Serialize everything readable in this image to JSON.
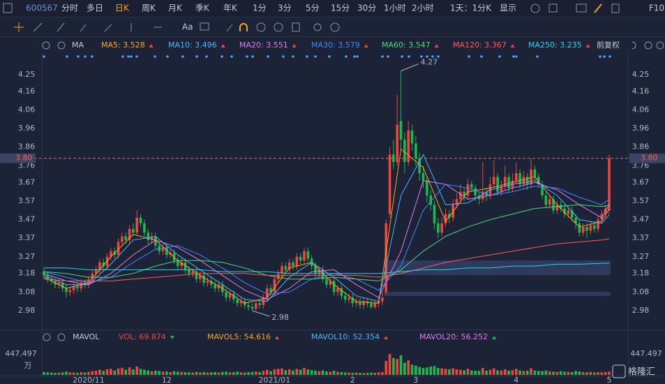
{
  "toolbar": {
    "symbol": "600567",
    "periods": [
      "分时",
      "多日",
      "日K",
      "周K",
      "月K",
      "季K",
      "年K",
      "1分",
      "3分",
      "5分",
      "15分",
      "30分",
      "1小时",
      "2小时"
    ],
    "range": "1天：1分K",
    "display": "显示",
    "f10": "F10",
    "tools_text": "Aa"
  },
  "chart_data": {
    "type": "candlestick",
    "indicator": "MA",
    "adjust": "前复权",
    "ylim": [
      2.886,
      4.37
    ],
    "yticks": [
      2.98,
      3.08,
      3.18,
      3.27,
      3.37,
      3.47,
      3.57,
      3.67,
      3.76,
      3.86,
      3.96,
      4.06,
      4.16,
      4.25
    ],
    "grid": false,
    "up_color": "#f0463e",
    "down_color": "#1fb84d",
    "xticks": [
      {
        "value": 12,
        "label": "2020/11"
      },
      {
        "value": 33,
        "label": "12"
      },
      {
        "value": 62,
        "label": "2021/01"
      },
      {
        "value": 83,
        "label": "2"
      },
      {
        "value": 100,
        "label": "3"
      },
      {
        "value": 127,
        "label": "4"
      },
      {
        "value": 152,
        "label": "5"
      }
    ],
    "last_price": {
      "value": 3.8,
      "label": "3.80"
    },
    "annotations": [
      {
        "label": "4.27",
        "value": 4.27,
        "index": 96
      },
      {
        "label": "2.98",
        "value": 2.98,
        "index": 56
      }
    ],
    "ohlc": [
      [
        3.19,
        3.21,
        3.15,
        3.17
      ],
      [
        3.17,
        3.19,
        3.13,
        3.15
      ],
      [
        3.15,
        3.17,
        3.12,
        3.14
      ],
      [
        3.14,
        3.16,
        3.1,
        3.12
      ],
      [
        3.12,
        3.15,
        3.1,
        3.13
      ],
      [
        3.13,
        3.15,
        3.08,
        3.1
      ],
      [
        3.1,
        3.12,
        3.05,
        3.08
      ],
      [
        3.08,
        3.11,
        3.06,
        3.09
      ],
      [
        3.09,
        3.13,
        3.07,
        3.11
      ],
      [
        3.11,
        3.13,
        3.08,
        3.1
      ],
      [
        3.1,
        3.15,
        3.08,
        3.13
      ],
      [
        3.13,
        3.15,
        3.1,
        3.12
      ],
      [
        3.12,
        3.17,
        3.1,
        3.15
      ],
      [
        3.15,
        3.2,
        3.13,
        3.18
      ],
      [
        3.18,
        3.22,
        3.16,
        3.2
      ],
      [
        3.2,
        3.26,
        3.18,
        3.24
      ],
      [
        3.24,
        3.26,
        3.2,
        3.22
      ],
      [
        3.22,
        3.29,
        3.2,
        3.27
      ],
      [
        3.27,
        3.32,
        3.25,
        3.3
      ],
      [
        3.3,
        3.32,
        3.26,
        3.28
      ],
      [
        3.28,
        3.37,
        3.26,
        3.35
      ],
      [
        3.35,
        3.4,
        3.33,
        3.38
      ],
      [
        3.38,
        3.4,
        3.34,
        3.36
      ],
      [
        3.36,
        3.44,
        3.34,
        3.42
      ],
      [
        3.42,
        3.45,
        3.38,
        3.4
      ],
      [
        3.4,
        3.52,
        3.38,
        3.48
      ],
      [
        3.48,
        3.5,
        3.43,
        3.45
      ],
      [
        3.45,
        3.47,
        3.38,
        3.4
      ],
      [
        3.4,
        3.42,
        3.34,
        3.36
      ],
      [
        3.36,
        3.4,
        3.34,
        3.38
      ],
      [
        3.38,
        3.4,
        3.31,
        3.33
      ],
      [
        3.33,
        3.35,
        3.28,
        3.3
      ],
      [
        3.3,
        3.34,
        3.28,
        3.32
      ],
      [
        3.32,
        3.34,
        3.26,
        3.28
      ],
      [
        3.28,
        3.31,
        3.26,
        3.29
      ],
      [
        3.29,
        3.31,
        3.23,
        3.25
      ],
      [
        3.25,
        3.27,
        3.2,
        3.22
      ],
      [
        3.22,
        3.26,
        3.2,
        3.24
      ],
      [
        3.24,
        3.26,
        3.18,
        3.2
      ],
      [
        3.2,
        3.22,
        3.16,
        3.18
      ],
      [
        3.18,
        3.21,
        3.16,
        3.19
      ],
      [
        3.19,
        3.21,
        3.13,
        3.15
      ],
      [
        3.15,
        3.19,
        3.13,
        3.17
      ],
      [
        3.17,
        3.19,
        3.11,
        3.13
      ],
      [
        3.13,
        3.16,
        3.11,
        3.14
      ],
      [
        3.14,
        3.16,
        3.1,
        3.12
      ],
      [
        3.12,
        3.14,
        3.08,
        3.1
      ],
      [
        3.1,
        3.14,
        3.08,
        3.12
      ],
      [
        3.12,
        3.14,
        3.06,
        3.08
      ],
      [
        3.08,
        3.1,
        3.03,
        3.05
      ],
      [
        3.05,
        3.09,
        3.03,
        3.07
      ],
      [
        3.07,
        3.09,
        3.02,
        3.04
      ],
      [
        3.04,
        3.06,
        3.0,
        3.02
      ],
      [
        3.02,
        3.05,
        3.0,
        3.03
      ],
      [
        3.03,
        3.05,
        2.99,
        3.01
      ],
      [
        3.01,
        3.03,
        2.98,
        3.0
      ],
      [
        3.0,
        3.02,
        2.98,
        2.99
      ],
      [
        2.99,
        3.04,
        2.98,
        3.02
      ],
      [
        3.02,
        3.04,
        2.99,
        3.01
      ],
      [
        3.01,
        3.07,
        2.99,
        3.05
      ],
      [
        3.05,
        3.12,
        3.03,
        3.1
      ],
      [
        3.1,
        3.12,
        3.06,
        3.08
      ],
      [
        3.08,
        3.17,
        3.06,
        3.15
      ],
      [
        3.15,
        3.2,
        3.13,
        3.18
      ],
      [
        3.18,
        3.24,
        3.16,
        3.22
      ],
      [
        3.22,
        3.24,
        3.18,
        3.2
      ],
      [
        3.2,
        3.26,
        3.18,
        3.24
      ],
      [
        3.24,
        3.26,
        3.2,
        3.22
      ],
      [
        3.22,
        3.29,
        3.2,
        3.27
      ],
      [
        3.27,
        3.29,
        3.23,
        3.25
      ],
      [
        3.25,
        3.32,
        3.23,
        3.3
      ],
      [
        3.3,
        3.32,
        3.24,
        3.26
      ],
      [
        3.26,
        3.28,
        3.2,
        3.22
      ],
      [
        3.22,
        3.24,
        3.16,
        3.18
      ],
      [
        3.18,
        3.22,
        3.16,
        3.2
      ],
      [
        3.2,
        3.22,
        3.13,
        3.15
      ],
      [
        3.15,
        3.17,
        3.1,
        3.12
      ],
      [
        3.12,
        3.16,
        3.1,
        3.14
      ],
      [
        3.14,
        3.16,
        3.06,
        3.08
      ],
      [
        3.08,
        3.12,
        3.06,
        3.1
      ],
      [
        3.1,
        3.12,
        3.04,
        3.06
      ],
      [
        3.06,
        3.08,
        3.02,
        3.04
      ],
      [
        3.04,
        3.07,
        3.02,
        3.05
      ],
      [
        3.05,
        3.07,
        3.0,
        3.02
      ],
      [
        3.02,
        3.05,
        3.0,
        3.03
      ],
      [
        3.03,
        3.05,
        2.99,
        3.01
      ],
      [
        3.01,
        3.05,
        2.99,
        3.03
      ],
      [
        3.03,
        3.05,
        3.0,
        3.02
      ],
      [
        3.02,
        3.04,
        2.99,
        3.0
      ],
      [
        3.0,
        3.04,
        2.99,
        3.02
      ],
      [
        3.02,
        3.05,
        3.0,
        3.03
      ],
      [
        3.03,
        3.08,
        3.01,
        3.05
      ],
      [
        3.08,
        3.47,
        3.07,
        3.45
      ],
      [
        3.5,
        3.86,
        3.48,
        3.82
      ],
      [
        3.82,
        3.9,
        3.74,
        3.78
      ],
      [
        3.78,
        4.14,
        3.76,
        3.98
      ],
      [
        4.0,
        4.27,
        3.85,
        3.9
      ],
      [
        3.9,
        3.94,
        3.72,
        3.78
      ],
      [
        3.78,
        4.0,
        3.76,
        3.95
      ],
      [
        3.95,
        3.98,
        3.84,
        3.88
      ],
      [
        3.88,
        3.92,
        3.76,
        3.8
      ],
      [
        3.8,
        3.83,
        3.68,
        3.72
      ],
      [
        3.72,
        3.76,
        3.64,
        3.68
      ],
      [
        3.68,
        3.7,
        3.56,
        3.6
      ],
      [
        3.6,
        3.63,
        3.52,
        3.55
      ],
      [
        3.55,
        3.57,
        3.42,
        3.45
      ],
      [
        3.45,
        3.48,
        3.37,
        3.4
      ],
      [
        3.4,
        3.48,
        3.38,
        3.45
      ],
      [
        3.45,
        3.53,
        3.43,
        3.5
      ],
      [
        3.5,
        3.52,
        3.45,
        3.48
      ],
      [
        3.48,
        3.58,
        3.46,
        3.55
      ],
      [
        3.55,
        3.61,
        3.53,
        3.58
      ],
      [
        3.58,
        3.66,
        3.56,
        3.62
      ],
      [
        3.62,
        3.64,
        3.57,
        3.6
      ],
      [
        3.6,
        3.69,
        3.58,
        3.66
      ],
      [
        3.66,
        3.68,
        3.62,
        3.64
      ],
      [
        3.64,
        3.66,
        3.57,
        3.6
      ],
      [
        3.6,
        3.62,
        3.55,
        3.58
      ],
      [
        3.58,
        3.78,
        3.56,
        3.62
      ],
      [
        3.62,
        3.64,
        3.57,
        3.6
      ],
      [
        3.6,
        3.7,
        3.58,
        3.66
      ],
      [
        3.66,
        3.79,
        3.64,
        3.7
      ],
      [
        3.7,
        3.72,
        3.6,
        3.62
      ],
      [
        3.62,
        3.68,
        3.6,
        3.65
      ],
      [
        3.65,
        3.76,
        3.63,
        3.7
      ],
      [
        3.7,
        3.72,
        3.62,
        3.64
      ],
      [
        3.64,
        3.72,
        3.62,
        3.68
      ],
      [
        3.68,
        3.78,
        3.66,
        3.72
      ],
      [
        3.72,
        3.74,
        3.64,
        3.66
      ],
      [
        3.66,
        3.73,
        3.64,
        3.7
      ],
      [
        3.7,
        3.72,
        3.63,
        3.66
      ],
      [
        3.66,
        3.8,
        3.64,
        3.74
      ],
      [
        3.74,
        3.76,
        3.68,
        3.7
      ],
      [
        3.7,
        3.72,
        3.64,
        3.66
      ],
      [
        3.66,
        3.68,
        3.58,
        3.6
      ],
      [
        3.6,
        3.62,
        3.53,
        3.55
      ],
      [
        3.55,
        3.6,
        3.53,
        3.58
      ],
      [
        3.58,
        3.6,
        3.5,
        3.52
      ],
      [
        3.52,
        3.57,
        3.5,
        3.55
      ],
      [
        3.55,
        3.57,
        3.51,
        3.53
      ],
      [
        3.53,
        3.55,
        3.48,
        3.5
      ],
      [
        3.5,
        3.54,
        3.48,
        3.52
      ],
      [
        3.52,
        3.54,
        3.46,
        3.48
      ],
      [
        3.48,
        3.5,
        3.42,
        3.45
      ],
      [
        3.45,
        3.47,
        3.38,
        3.4
      ],
      [
        3.4,
        3.45,
        3.38,
        3.43
      ],
      [
        3.43,
        3.45,
        3.37,
        3.41
      ],
      [
        3.41,
        3.46,
        3.39,
        3.44
      ],
      [
        3.44,
        3.46,
        3.4,
        3.42
      ],
      [
        3.42,
        3.49,
        3.4,
        3.47
      ],
      [
        3.47,
        3.52,
        3.45,
        3.5
      ],
      [
        3.5,
        3.55,
        3.48,
        3.53
      ],
      [
        3.52,
        3.82,
        3.5,
        3.8
      ]
    ],
    "moving_averages": {
      "x": [
        0,
        6,
        12,
        18,
        24,
        30,
        36,
        42,
        48,
        54,
        60,
        66,
        72,
        78,
        84,
        90,
        96,
        102,
        108,
        114,
        120,
        126,
        132,
        138,
        144,
        150,
        152
      ],
      "series": [
        {
          "label": "MA5: 3.528",
          "color": "#f5a623",
          "values": [
            3.16,
            3.1,
            3.13,
            3.27,
            3.39,
            3.36,
            3.25,
            3.17,
            3.1,
            3.02,
            3.05,
            3.21,
            3.24,
            3.12,
            3.03,
            3.02,
            3.85,
            3.75,
            3.46,
            3.62,
            3.64,
            3.67,
            3.7,
            3.55,
            3.43,
            3.46,
            3.528
          ]
        },
        {
          "label": "MA10: 3.496",
          "color": "#4fb3ff",
          "values": [
            3.17,
            3.12,
            3.12,
            3.23,
            3.36,
            3.38,
            3.28,
            3.2,
            3.12,
            3.04,
            3.03,
            3.16,
            3.24,
            3.16,
            3.06,
            3.03,
            3.6,
            3.82,
            3.55,
            3.56,
            3.63,
            3.66,
            3.68,
            3.6,
            3.47,
            3.45,
            3.496
          ]
        },
        {
          "label": "MA20: 3.551",
          "color": "#e07bf0",
          "values": [
            3.18,
            3.14,
            3.12,
            3.18,
            3.28,
            3.36,
            3.32,
            3.25,
            3.17,
            3.09,
            3.04,
            3.1,
            3.19,
            3.2,
            3.12,
            3.05,
            3.3,
            3.68,
            3.66,
            3.58,
            3.6,
            3.64,
            3.67,
            3.63,
            3.55,
            3.48,
            3.551
          ]
        },
        {
          "label": "MA30: 3.579",
          "color": "#3d8bff",
          "values": [
            3.19,
            3.16,
            3.13,
            3.16,
            3.24,
            3.31,
            3.33,
            3.28,
            3.21,
            3.13,
            3.07,
            3.08,
            3.15,
            3.18,
            3.15,
            3.09,
            3.22,
            3.52,
            3.66,
            3.64,
            3.6,
            3.62,
            3.65,
            3.64,
            3.59,
            3.55,
            3.579
          ]
        },
        {
          "label": "MA60: 3.547",
          "color": "#4cd97b",
          "values": [
            3.19,
            3.18,
            3.16,
            3.16,
            3.18,
            3.22,
            3.25,
            3.25,
            3.24,
            3.21,
            3.17,
            3.15,
            3.15,
            3.16,
            3.15,
            3.14,
            3.2,
            3.3,
            3.38,
            3.43,
            3.47,
            3.5,
            3.53,
            3.54,
            3.55,
            3.54,
            3.547
          ]
        },
        {
          "label": "MA120: 3.367",
          "color": "#ff5b5b",
          "values": [
            3.15,
            3.14,
            3.14,
            3.14,
            3.15,
            3.16,
            3.17,
            3.18,
            3.18,
            3.18,
            3.17,
            3.17,
            3.17,
            3.17,
            3.17,
            3.16,
            3.18,
            3.21,
            3.24,
            3.26,
            3.28,
            3.3,
            3.32,
            3.34,
            3.35,
            3.36,
            3.367
          ]
        },
        {
          "label": "MA250: 3.235",
          "color": "#27d4e6",
          "values": [
            3.21,
            3.21,
            3.2,
            3.2,
            3.2,
            3.2,
            3.2,
            3.2,
            3.19,
            3.19,
            3.19,
            3.18,
            3.18,
            3.18,
            3.18,
            3.18,
            3.19,
            3.2,
            3.2,
            3.21,
            3.21,
            3.22,
            3.22,
            3.23,
            3.23,
            3.235,
            3.235
          ]
        }
      ]
    },
    "volume": {
      "indicator": "MAVOL",
      "unit": "万",
      "ylim": [
        0,
        447.497
      ],
      "yticks": [
        447.497
      ],
      "legend": [
        {
          "label": "VOL: 69.874",
          "color": "#f0463e"
        },
        {
          "label": "MAVOL5: 54.616",
          "color": "#f5a623"
        },
        {
          "label": "MAVOL10: 52.354",
          "color": "#4fb3ff"
        },
        {
          "label": "MAVOL20: 56.252",
          "color": "#e07bf0"
        }
      ],
      "values": [
        60,
        55,
        50,
        45,
        48,
        52,
        70,
        55,
        50,
        45,
        60,
        50,
        65,
        80,
        90,
        110,
        85,
        120,
        130,
        95,
        140,
        150,
        110,
        160,
        120,
        180,
        130,
        110,
        95,
        80,
        90,
        85,
        70,
        75,
        60,
        80,
        70,
        65,
        60,
        55,
        50,
        65,
        55,
        60,
        50,
        55,
        60,
        50,
        65,
        70,
        55,
        60,
        70,
        55,
        50,
        60,
        65,
        70,
        60,
        85,
        110,
        80,
        120,
        130,
        140,
        100,
        120,
        95,
        130,
        110,
        150,
        120,
        100,
        90,
        80,
        95,
        75,
        70,
        90,
        65,
        60,
        55,
        50,
        45,
        50,
        45,
        40,
        45,
        50,
        45,
        55,
        60,
        300,
        447,
        360,
        340,
        420,
        260,
        310,
        220,
        200,
        170,
        150,
        160,
        180,
        190,
        150,
        140,
        130,
        120,
        140,
        120,
        110,
        100,
        130,
        95,
        90,
        85,
        150,
        90,
        110,
        140,
        100,
        95,
        120,
        90,
        100,
        130,
        95,
        85,
        90,
        140,
        95,
        85,
        80,
        95,
        75,
        70,
        65,
        80,
        70,
        65,
        60,
        85,
        75,
        60,
        55,
        65,
        50,
        60,
        55,
        60,
        69.874
      ]
    }
  },
  "watermark": "格隆汇"
}
